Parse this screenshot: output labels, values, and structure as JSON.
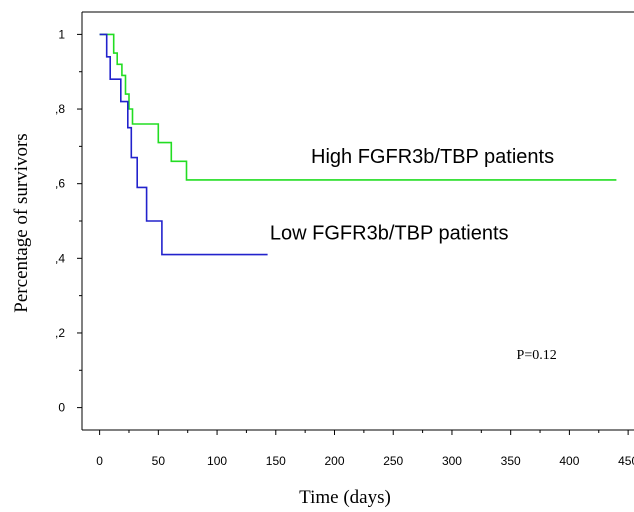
{
  "chart_data": {
    "type": "line",
    "step": true,
    "xlabel": "Time (days)",
    "ylabel": "Percentage of survivors",
    "xlim": [
      -15,
      455
    ],
    "ylim": [
      -0.06,
      1.06
    ],
    "xticks": [
      0,
      50,
      100,
      150,
      200,
      250,
      300,
      350,
      400,
      450
    ],
    "yticks": [
      0,
      0.2,
      0.4,
      0.6,
      0.8,
      1
    ],
    "ytick_labels": [
      "0",
      ",2",
      ",4",
      ",6",
      ",8",
      "1"
    ],
    "grid": false,
    "series": [
      {
        "name": "High FGFR3b/TBP patients",
        "color": "#22dd22",
        "points": [
          [
            0,
            1
          ],
          [
            12,
            1
          ],
          [
            12,
            0.95
          ],
          [
            15,
            0.95
          ],
          [
            15,
            0.92
          ],
          [
            19,
            0.92
          ],
          [
            19,
            0.89
          ],
          [
            22,
            0.89
          ],
          [
            22,
            0.84
          ],
          [
            25,
            0.84
          ],
          [
            25,
            0.8
          ],
          [
            28,
            0.8
          ],
          [
            28,
            0.76
          ],
          [
            50,
            0.76
          ],
          [
            50,
            0.71
          ],
          [
            61,
            0.71
          ],
          [
            61,
            0.66
          ],
          [
            74,
            0.66
          ],
          [
            74,
            0.61
          ],
          [
            440,
            0.61
          ]
        ]
      },
      {
        "name": "Low FGFR3b/TBP patients",
        "color": "#2222cc",
        "points": [
          [
            0,
            1
          ],
          [
            6,
            1
          ],
          [
            6,
            0.94
          ],
          [
            9,
            0.94
          ],
          [
            9,
            0.88
          ],
          [
            18,
            0.88
          ],
          [
            18,
            0.82
          ],
          [
            24,
            0.82
          ],
          [
            24,
            0.75
          ],
          [
            27,
            0.75
          ],
          [
            27,
            0.67
          ],
          [
            32,
            0.67
          ],
          [
            32,
            0.59
          ],
          [
            40,
            0.59
          ],
          [
            40,
            0.5
          ],
          [
            53,
            0.5
          ],
          [
            53,
            0.41
          ],
          [
            143,
            0.41
          ]
        ]
      }
    ],
    "series_labels": [
      {
        "text": "High FGFR3b/TBP patients",
        "x": 180,
        "y": 0.655
      },
      {
        "text": "Low FGFR3b/TBP patients",
        "x": 145,
        "y": 0.45
      }
    ],
    "annotations": [
      {
        "text": "P=0.12",
        "x": 355,
        "y": 0.13
      }
    ]
  }
}
